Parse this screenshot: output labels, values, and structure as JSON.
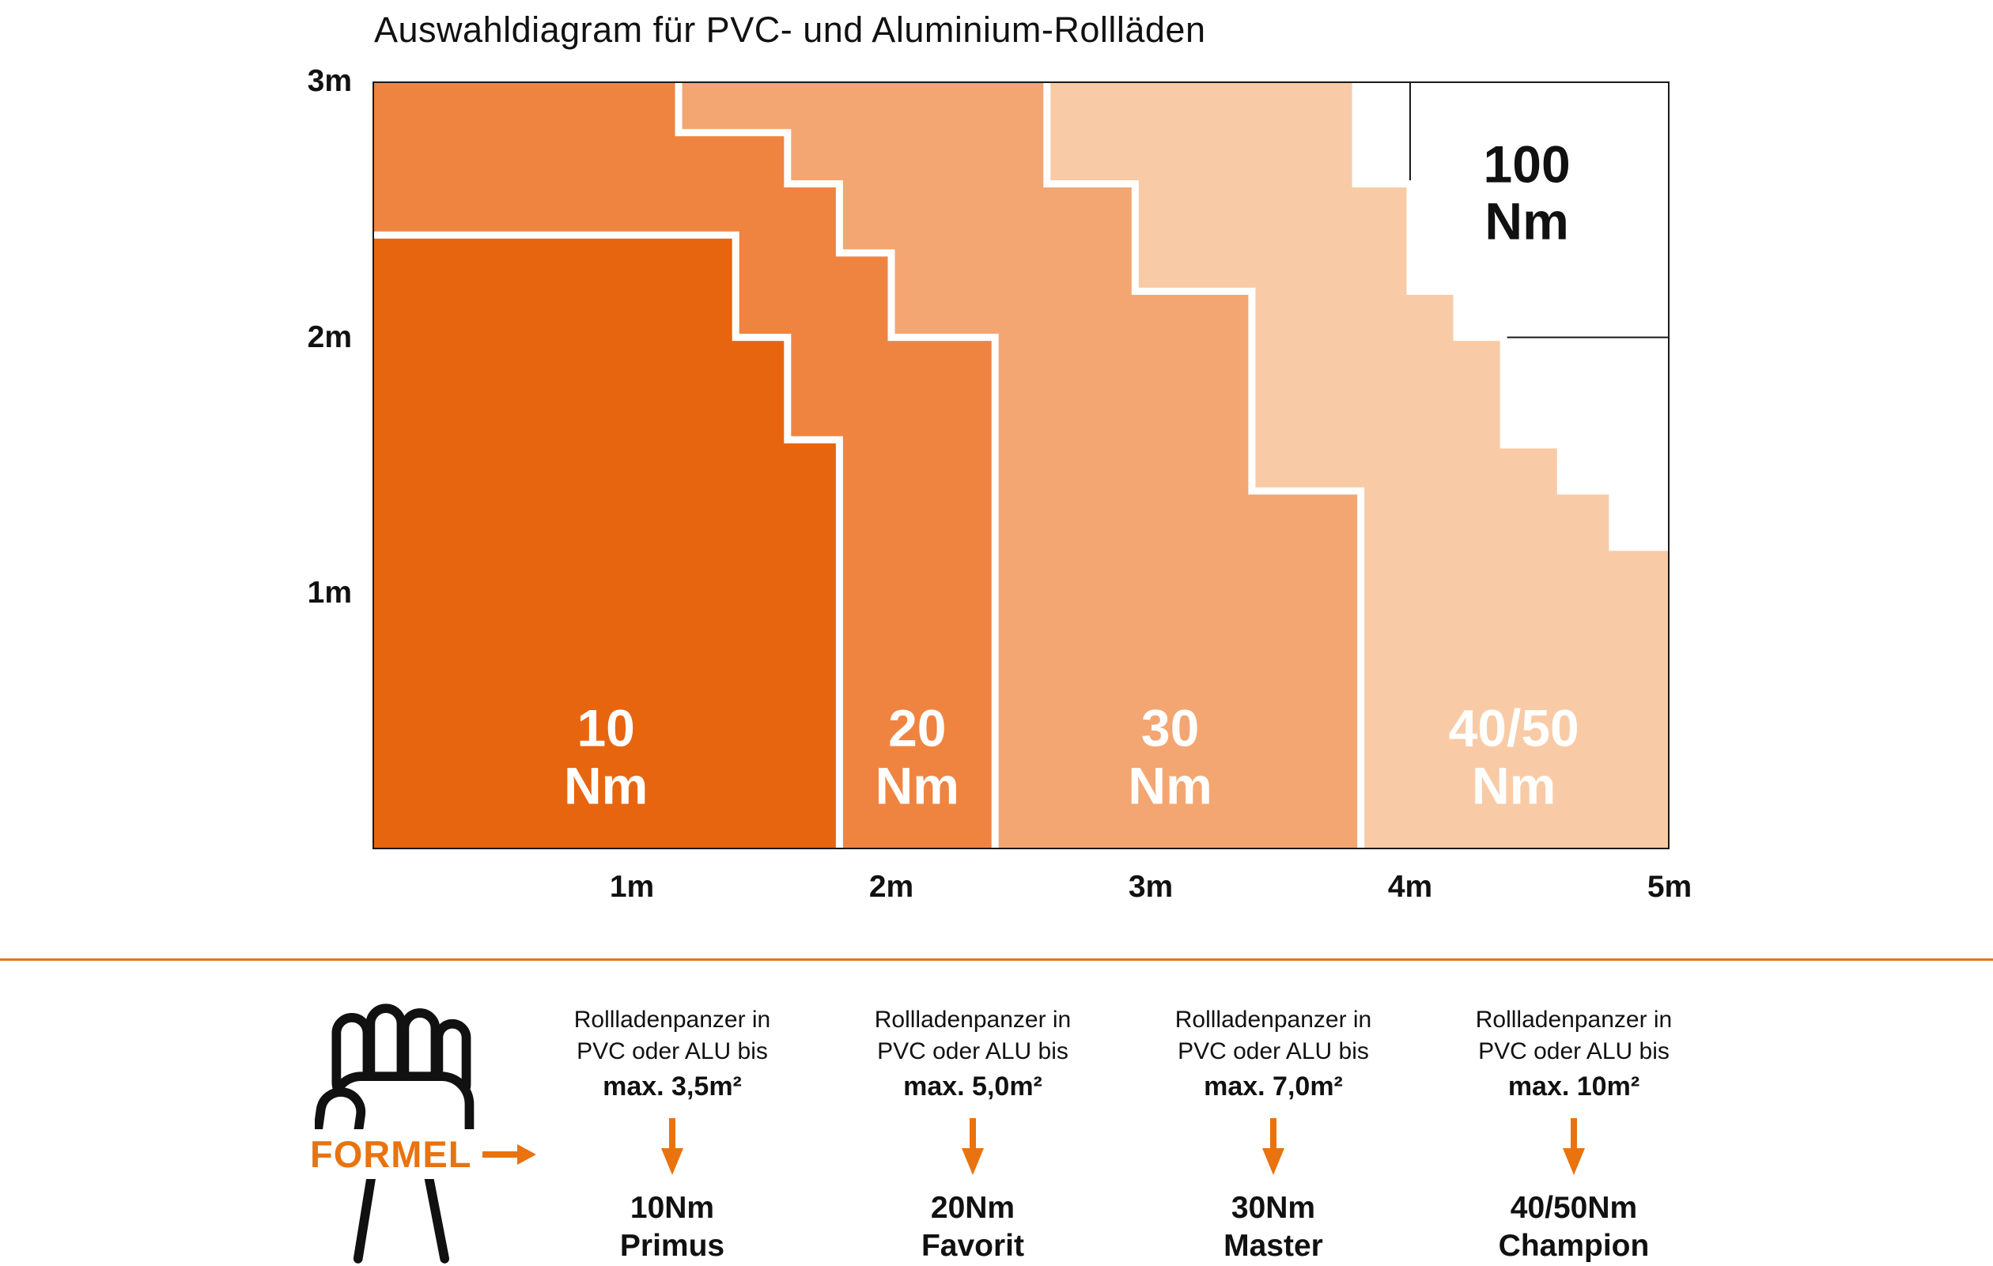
{
  "colors": {
    "accent": "#E8730F",
    "grid": "#1A1A1A",
    "region_boundary": "#FFFFFF",
    "background": "#FFFFFF"
  },
  "chart_data": {
    "type": "area",
    "title": "Auswahldiagram für PVC- und Aluminium-Rollläden",
    "xlabel": "",
    "ylabel": "",
    "xlim": [
      0,
      5
    ],
    "ylim": [
      0,
      3
    ],
    "grid": true,
    "grid_x": [
      1,
      2,
      3,
      4
    ],
    "grid_y": [
      1,
      2
    ],
    "x_ticks": [
      "1m",
      "2m",
      "3m",
      "4m",
      "5m"
    ],
    "y_ticks": [
      "3m",
      "2m",
      "1m"
    ],
    "regions": [
      {
        "name": "10 Nm",
        "label_value": "10",
        "label_unit": "Nm",
        "label_color": "#FFFFFF",
        "color": "#E8650F",
        "steps": [
          [
            1.4,
            2.4
          ],
          [
            1.6,
            2.0
          ],
          [
            1.8,
            1.6
          ]
        ]
      },
      {
        "name": "20 Nm",
        "label_value": "20",
        "label_unit": "Nm",
        "label_color": "#FFFFFF",
        "color": "#EF8440",
        "steps": [
          [
            1.18,
            3.0
          ],
          [
            1.6,
            2.8
          ],
          [
            1.8,
            2.6
          ],
          [
            2.0,
            2.33
          ],
          [
            2.4,
            2.0
          ]
        ]
      },
      {
        "name": "30 Nm",
        "label_value": "30",
        "label_unit": "Nm",
        "label_color": "#FFFFFF",
        "color": "#F3A671",
        "steps": [
          [
            2.6,
            3.0
          ],
          [
            2.94,
            2.6
          ],
          [
            3.39,
            2.18
          ],
          [
            3.81,
            1.4
          ]
        ]
      },
      {
        "name": "40/50 Nm",
        "label_value": "40/50",
        "label_unit": "Nm",
        "label_color": "#FFFFFF",
        "color": "#F8CBA6",
        "steps": [
          [
            3.79,
            3.0
          ],
          [
            4.0,
            2.6
          ],
          [
            4.18,
            2.18
          ],
          [
            4.36,
            2.0
          ],
          [
            4.58,
            1.58
          ],
          [
            4.78,
            1.4
          ],
          [
            5.0,
            1.18
          ]
        ]
      },
      {
        "name": "100 Nm",
        "label_value": "100",
        "label_unit": "Nm",
        "label_color": "#111111",
        "color": "#FFFFFF"
      }
    ]
  },
  "formula": {
    "label": "FORMEL"
  },
  "columns": [
    {
      "line1": "Rollladenpanzer in",
      "line2": "PVC oder ALU bis",
      "max": "max. 3,5m²",
      "result1": "10Nm",
      "result2": "Primus"
    },
    {
      "line1": "Rollladenpanzer in",
      "line2": "PVC oder ALU bis",
      "max": "max. 5,0m²",
      "result1": "20Nm",
      "result2": "Favorit"
    },
    {
      "line1": "Rollladenpanzer in",
      "line2": "PVC oder ALU bis",
      "max": "max. 7,0m²",
      "result1": "30Nm",
      "result2": "Master"
    },
    {
      "line1": "Rollladenpanzer in",
      "line2": "PVC oder ALU bis",
      "max": "max. 10m²",
      "result1": "40/50Nm",
      "result2": "Champion"
    }
  ]
}
